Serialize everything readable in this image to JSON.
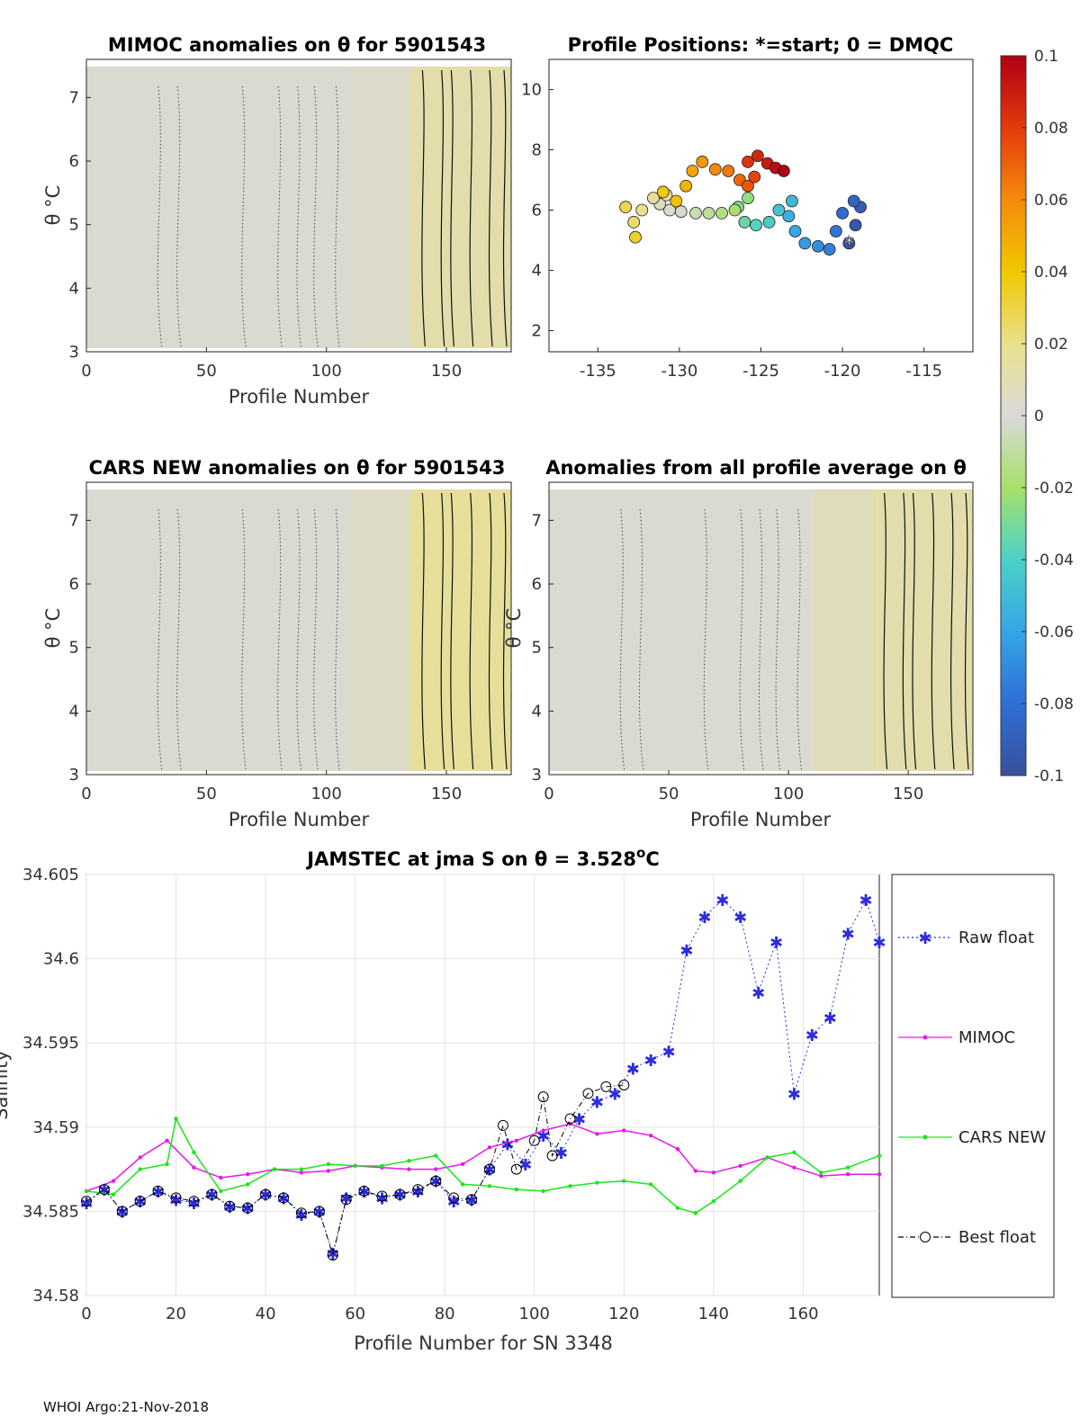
{
  "footer": "WHOI Argo:21-Nov-2018",
  "chart_data": [
    {
      "type": "heatmap",
      "title": "MIMOC anomalies on θ  for 5901543",
      "xlabel": "Profile Number",
      "ylabel": "θ °C",
      "xlim": [
        0,
        177
      ],
      "ylim": [
        3,
        7.6
      ],
      "xticks": [
        "0",
        "50",
        "100",
        "150"
      ],
      "yticks": [
        "3",
        "4",
        "5",
        "6",
        "7"
      ],
      "bands": [
        {
          "x0": 0,
          "x1": 110,
          "value": 0.002
        },
        {
          "x0": 110,
          "x1": 135,
          "value": 0.004
        },
        {
          "x0": 135,
          "x1": 177,
          "value": 0.012
        }
      ]
    },
    {
      "type": "scatter",
      "title": "Profile Positions: *=start; 0 = DMQC",
      "xlim": [
        -138,
        -112
      ],
      "ylim": [
        1.3,
        11
      ],
      "xticks": [
        "-135",
        "-130",
        "-125",
        "-120",
        "-115"
      ],
      "yticks": [
        "2",
        "4",
        "6",
        "8",
        "10"
      ],
      "track": [
        [
          -119.6,
          4.9
        ],
        [
          -119.2,
          5.5
        ],
        [
          -118.9,
          6.1
        ],
        [
          -119.3,
          6.3
        ],
        [
          -120.0,
          5.9
        ],
        [
          -120.4,
          5.3
        ],
        [
          -120.8,
          4.7
        ],
        [
          -121.5,
          4.8
        ],
        [
          -122.3,
          4.9
        ],
        [
          -122.9,
          5.3
        ],
        [
          -123.3,
          5.8
        ],
        [
          -123.1,
          6.3
        ],
        [
          -123.9,
          6.0
        ],
        [
          -124.5,
          5.6
        ],
        [
          -125.3,
          5.5
        ],
        [
          -126.0,
          5.6
        ],
        [
          -126.4,
          6.1
        ],
        [
          -125.8,
          6.4
        ],
        [
          -126.6,
          6.0
        ],
        [
          -127.4,
          5.9
        ],
        [
          -128.2,
          5.9
        ],
        [
          -129.0,
          5.9
        ],
        [
          -129.9,
          5.95
        ],
        [
          -130.6,
          6.0
        ],
        [
          -131.2,
          6.2
        ],
        [
          -130.8,
          6.5
        ],
        [
          -131.6,
          6.4
        ],
        [
          -132.3,
          6.0
        ],
        [
          -132.8,
          5.6
        ],
        [
          -133.3,
          6.1
        ],
        [
          -132.7,
          5.1
        ],
        [
          -131.0,
          6.6
        ],
        [
          -130.2,
          6.3
        ],
        [
          -129.6,
          6.8
        ],
        [
          -129.2,
          7.3
        ],
        [
          -128.6,
          7.6
        ],
        [
          -127.8,
          7.35
        ],
        [
          -127.0,
          7.3
        ],
        [
          -126.3,
          7.0
        ],
        [
          -125.8,
          6.8
        ],
        [
          -125.4,
          7.1
        ],
        [
          -125.8,
          7.6
        ],
        [
          -125.2,
          7.8
        ],
        [
          -124.6,
          7.55
        ],
        [
          -124.1,
          7.4
        ],
        [
          -123.6,
          7.3
        ]
      ],
      "start": [
        -119.6,
        4.9
      ],
      "colorbar": {
        "ticks": [
          "0.1",
          "0.08",
          "0.06",
          "0.04",
          "0.02",
          "0",
          "-0.02",
          "-0.04",
          "-0.06",
          "-0.08",
          "-0.1"
        ],
        "range": [
          -0.1,
          0.1
        ]
      }
    },
    {
      "type": "heatmap",
      "title": "CARS NEW anomalies on θ for 5901543",
      "xlabel": "Profile Number",
      "ylabel": "θ °C",
      "xlim": [
        0,
        177
      ],
      "ylim": [
        3,
        7.6
      ],
      "xticks": [
        "0",
        "50",
        "100",
        "150"
      ],
      "yticks": [
        "3",
        "4",
        "5",
        "6",
        "7"
      ],
      "bands": [
        {
          "x0": 0,
          "x1": 110,
          "value": 0.002
        },
        {
          "x0": 110,
          "x1": 135,
          "value": 0.005
        },
        {
          "x0": 135,
          "x1": 177,
          "value": 0.016
        }
      ]
    },
    {
      "type": "heatmap",
      "title": "Anomalies from all profile average on θ",
      "xlabel": "Profile Number",
      "ylabel": "θ °C",
      "xlim": [
        0,
        177
      ],
      "ylim": [
        3,
        7.6
      ],
      "xticks": [
        "0",
        "50",
        "100",
        "150"
      ],
      "yticks": [
        "3",
        "4",
        "5",
        "6",
        "7"
      ],
      "bands": [
        {
          "x0": 0,
          "x1": 110,
          "value": 0.002
        },
        {
          "x0": 110,
          "x1": 135,
          "value": 0.008
        },
        {
          "x0": 135,
          "x1": 177,
          "value": 0.012
        }
      ]
    },
    {
      "type": "line",
      "title_main": "JAMSTEC at jma S on θ = 3.528",
      "title_sup": "o",
      "title_end": "C",
      "xlabel": "Profile Number for SN 3348",
      "ylabel": "Salinity",
      "xlim": [
        0,
        177
      ],
      "ylim": [
        34.58,
        34.605
      ],
      "xticks": [
        "0",
        "20",
        "40",
        "60",
        "80",
        "100",
        "120",
        "140",
        "160"
      ],
      "yticks": [
        "34.58",
        "34.585",
        "34.59",
        "34.595",
        "34.6",
        "34.605"
      ],
      "legend": [
        "Raw float",
        "MIMOC",
        "CARS NEW",
        "Best float"
      ],
      "series": [
        {
          "name": "Raw float",
          "color": "#2c2cdc",
          "x": [
            0,
            4,
            8,
            12,
            16,
            20,
            24,
            28,
            32,
            36,
            40,
            44,
            48,
            52,
            55,
            58,
            62,
            66,
            70,
            74,
            78,
            82,
            86,
            90,
            94,
            98,
            102,
            106,
            110,
            114,
            118,
            122,
            126,
            130,
            134,
            138,
            142,
            146,
            150,
            154,
            158,
            162,
            166,
            170,
            174,
            177
          ],
          "y": [
            34.5855,
            34.5863,
            34.585,
            34.5856,
            34.5862,
            34.5857,
            34.5855,
            34.586,
            34.5853,
            34.5852,
            34.586,
            34.5858,
            34.5848,
            34.585,
            34.5825,
            34.5858,
            34.5862,
            34.5858,
            34.586,
            34.5862,
            34.5868,
            34.5856,
            34.5857,
            34.5875,
            34.589,
            34.5878,
            34.5895,
            34.5885,
            34.5905,
            34.5915,
            34.592,
            34.5935,
            34.594,
            34.5945,
            34.6005,
            34.6025,
            34.6035,
            34.6025,
            34.598,
            34.601,
            34.592,
            34.5955,
            34.5965,
            34.6015,
            34.6035,
            34.601
          ]
        },
        {
          "name": "MIMOC",
          "color": "#e619e6",
          "x": [
            0,
            6,
            12,
            18,
            24,
            30,
            36,
            42,
            48,
            54,
            60,
            66,
            72,
            78,
            84,
            90,
            96,
            102,
            108,
            114,
            120,
            126,
            132,
            136,
            140,
            146,
            152,
            158,
            164,
            170,
            177
          ],
          "y": [
            34.5862,
            34.5868,
            34.5882,
            34.5892,
            34.5876,
            34.587,
            34.5872,
            34.5875,
            34.5873,
            34.5874,
            34.5877,
            34.5876,
            34.5875,
            34.5875,
            34.5878,
            34.5888,
            34.5892,
            34.5898,
            34.5902,
            34.5896,
            34.5898,
            34.5895,
            34.5887,
            34.5874,
            34.5873,
            34.5877,
            34.5882,
            34.5876,
            34.5871,
            34.5872,
            34.5872
          ]
        },
        {
          "name": "CARS NEW",
          "color": "#19e619",
          "x": [
            0,
            6,
            12,
            18,
            20,
            24,
            30,
            36,
            42,
            48,
            54,
            60,
            66,
            72,
            78,
            84,
            90,
            96,
            102,
            108,
            114,
            120,
            126,
            132,
            136,
            140,
            146,
            152,
            158,
            164,
            170,
            177
          ],
          "y": [
            34.5862,
            34.586,
            34.5875,
            34.5878,
            34.5905,
            34.5885,
            34.5862,
            34.5866,
            34.5875,
            34.5875,
            34.5878,
            34.5877,
            34.5877,
            34.588,
            34.5883,
            34.5866,
            34.5865,
            34.5863,
            34.5862,
            34.5865,
            34.5867,
            34.5868,
            34.5866,
            34.5852,
            34.5849,
            34.5856,
            34.5868,
            34.5882,
            34.5885,
            34.5873,
            34.5876,
            34.5883
          ]
        },
        {
          "name": "Best float",
          "color": "#000000",
          "x": [
            0,
            4,
            8,
            12,
            16,
            20,
            24,
            28,
            32,
            36,
            40,
            44,
            48,
            52,
            55,
            58,
            62,
            66,
            70,
            74,
            78,
            82,
            86,
            90,
            93,
            96,
            100,
            102,
            104,
            108,
            112,
            116,
            120
          ],
          "y": [
            34.5856,
            34.5863,
            34.585,
            34.5856,
            34.5862,
            34.5858,
            34.5856,
            34.586,
            34.5853,
            34.5852,
            34.586,
            34.5858,
            34.5849,
            34.585,
            34.5824,
            34.5857,
            34.5862,
            34.5859,
            34.586,
            34.5863,
            34.5868,
            34.5858,
            34.5857,
            34.5875,
            34.5901,
            34.5875,
            34.5892,
            34.5918,
            34.5883,
            34.5905,
            34.592,
            34.5924,
            34.5925
          ]
        }
      ]
    }
  ]
}
